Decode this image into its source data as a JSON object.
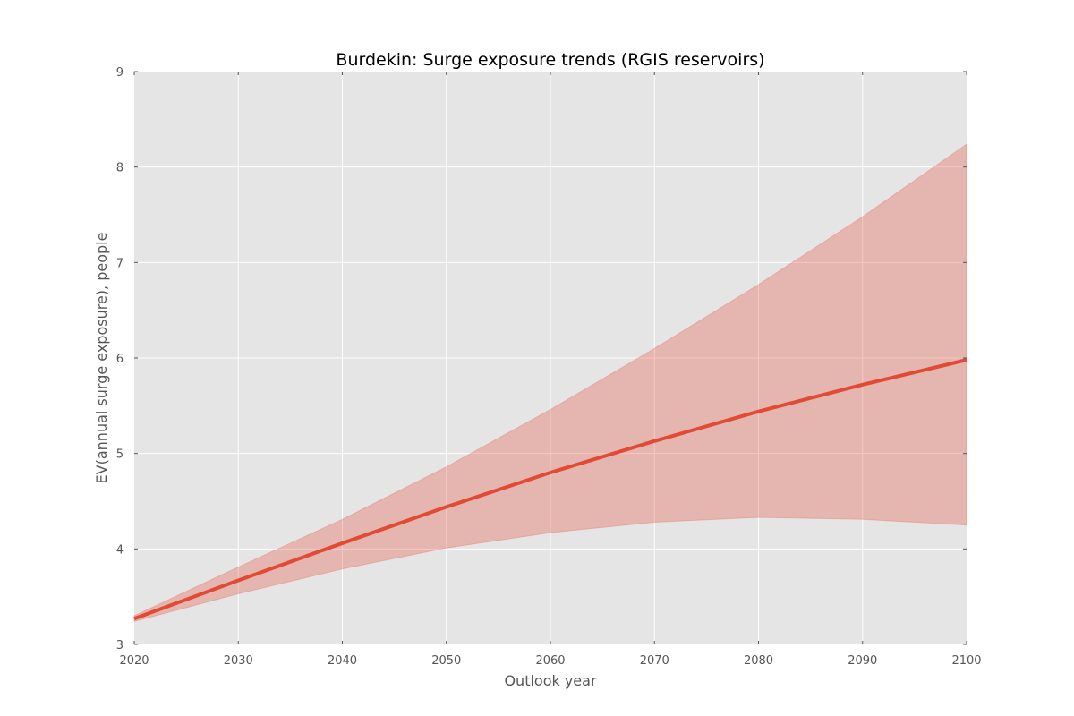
{
  "chart_data": {
    "type": "area",
    "title": "Burdekin: Surge exposure trends (RGIS reservoirs)",
    "xlabel": "Outlook year",
    "ylabel": "EV(annual surge exposure), people",
    "xlim": [
      2020,
      2100
    ],
    "ylim": [
      3,
      9
    ],
    "x_ticks": [
      "2020",
      "2030",
      "2040",
      "2050",
      "2060",
      "2070",
      "2080",
      "2090",
      "2100"
    ],
    "y_ticks": [
      "3",
      "4",
      "5",
      "6",
      "7",
      "8",
      "9"
    ],
    "grid": true,
    "x": [
      2020,
      2030,
      2040,
      2050,
      2060,
      2070,
      2080,
      2090,
      2100
    ],
    "series": [
      {
        "values": [
          3.27,
          3.67,
          4.06,
          4.44,
          4.8,
          5.13,
          5.44,
          5.72,
          5.98
        ],
        "lower": [
          3.24,
          3.53,
          3.79,
          4.01,
          4.17,
          4.28,
          4.33,
          4.31,
          4.25
        ],
        "upper": [
          3.3,
          3.81,
          4.31,
          4.86,
          5.46,
          6.1,
          6.77,
          7.48,
          8.24
        ]
      }
    ]
  },
  "colors": {
    "plot_background": "#e5e5e5",
    "grid": "#ffffff",
    "line": "#e24a33",
    "band": "#e24a33",
    "band_opacity": 0.3,
    "tick_text": "#555555"
  }
}
